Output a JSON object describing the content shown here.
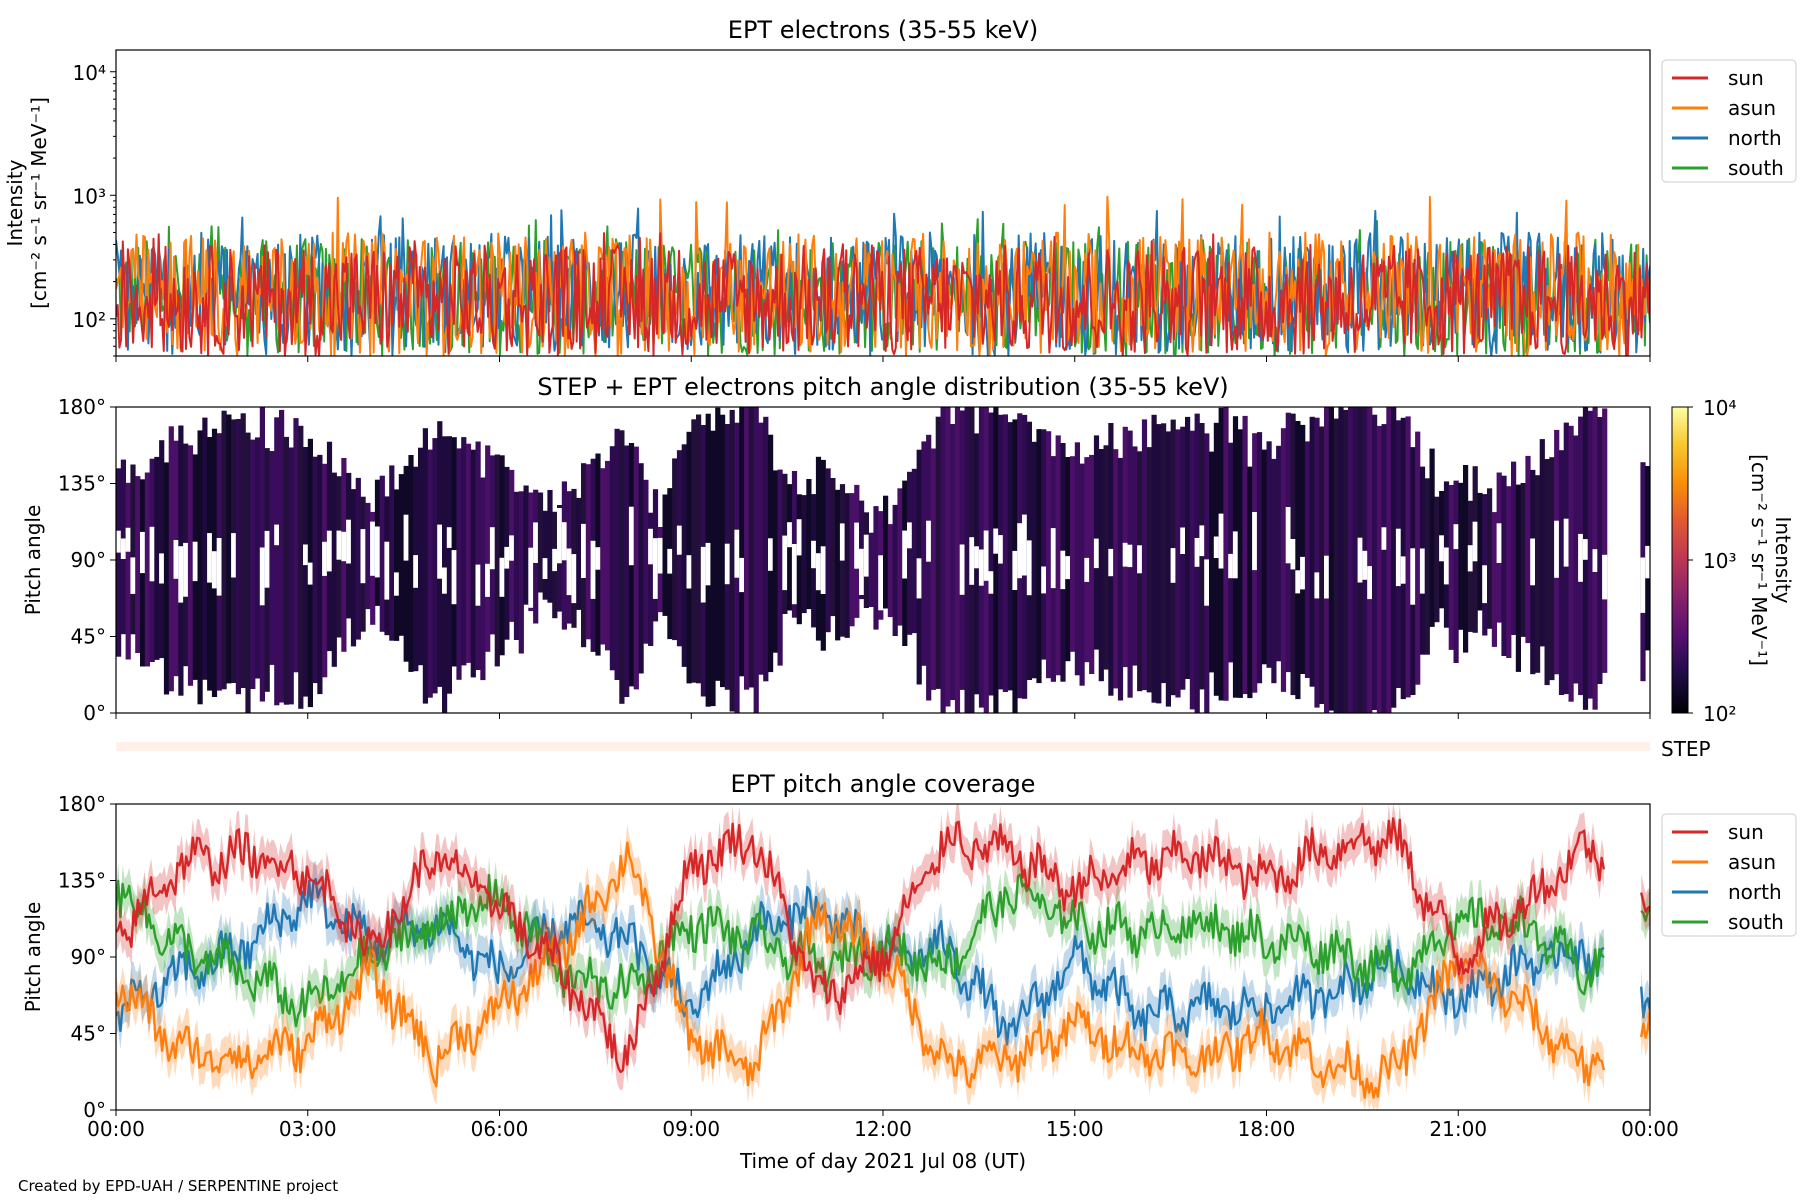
{
  "footer_credit": "Created by EPD-UAH / SERPENTINE project",
  "x_axis": {
    "label": "Time of day 2021 Jul 08 (UT)",
    "ticks": [
      "00:00",
      "03:00",
      "06:00",
      "09:00",
      "12:00",
      "15:00",
      "18:00",
      "21:00",
      "00:00"
    ],
    "range_hours": [
      0,
      24
    ]
  },
  "colorbar": {
    "label_line1": "Intensity",
    "label_line2": "[cm⁻² s⁻¹ sr⁻¹ MeV⁻¹]",
    "ticks": [
      "10⁴",
      "10³",
      "10²"
    ],
    "range": [
      100,
      10000
    ],
    "scale": "log",
    "colormap": "inferno"
  },
  "step_label": "STEP",
  "colors": {
    "sun": "#d62728",
    "asun": "#ff7f0e",
    "north": "#1f77b4",
    "south": "#2ca02c"
  },
  "chart_data": [
    {
      "type": "line",
      "title": "EPT electrons (35-55 keV)",
      "ylabel_line1": "Intensity",
      "ylabel_line2": "[cm⁻² s⁻¹ sr⁻¹ MeV⁻¹]",
      "yscale": "log",
      "ylim": [
        50,
        15000
      ],
      "yticks": [
        "10⁴",
        "10³",
        "10²"
      ],
      "legend": [
        "sun",
        "asun",
        "north",
        "south"
      ],
      "legend_position": "outside upper right",
      "series": [
        {
          "name": "sun",
          "typical_range": [
            50,
            400
          ],
          "peak": 500
        },
        {
          "name": "asun",
          "typical_range": [
            50,
            500
          ],
          "peak": 980
        },
        {
          "name": "north",
          "typical_range": [
            50,
            500
          ],
          "peak": 800
        },
        {
          "name": "south",
          "typical_range": [
            50,
            450
          ],
          "peak": 650
        }
      ]
    },
    {
      "type": "heatmap",
      "title": "STEP + EPT electrons pitch angle distribution (35-55 keV)",
      "ylabel": "Pitch angle",
      "ylim": [
        0,
        180
      ],
      "yticks": [
        "180°",
        "135°",
        "90°",
        "45°",
        "0°"
      ],
      "value_range": [
        100,
        10000
      ],
      "typical_value": 250,
      "data_gap_hours": [
        23.3,
        23.85
      ]
    },
    {
      "type": "line",
      "title": "EPT pitch angle coverage",
      "ylabel": "Pitch angle",
      "ylim": [
        0,
        180
      ],
      "yticks": [
        "180°",
        "135°",
        "90°",
        "45°",
        "0°"
      ],
      "legend": [
        "sun",
        "asun",
        "north",
        "south"
      ],
      "legend_position": "outside upper right",
      "shaded_band": true,
      "x_hours": [
        0,
        1,
        2,
        3,
        4,
        5,
        6,
        7,
        8,
        9,
        10,
        11,
        12,
        13,
        14,
        15,
        16,
        17,
        18,
        19,
        20,
        21,
        22,
        23,
        24
      ],
      "series": [
        {
          "name": "sun",
          "values": [
            100,
            145,
            150,
            140,
            95,
            150,
            120,
            80,
            30,
            145,
            160,
            65,
            90,
            160,
            150,
            130,
            145,
            150,
            135,
            155,
            160,
            90,
            120,
            155,
            130
          ]
        },
        {
          "name": "asun",
          "values": [
            75,
            35,
            30,
            40,
            80,
            30,
            60,
            95,
            150,
            40,
            25,
            115,
            90,
            25,
            30,
            50,
            35,
            30,
            45,
            25,
            20,
            90,
            60,
            25,
            50
          ]
        },
        {
          "name": "north",
          "values": [
            55,
            80,
            95,
            125,
            100,
            110,
            80,
            110,
            100,
            60,
            105,
            120,
            90,
            95,
            45,
            90,
            55,
            60,
            60,
            70,
            85,
            65,
            85,
            95,
            60
          ]
        },
        {
          "name": "south",
          "values": [
            130,
            95,
            80,
            60,
            90,
            110,
            125,
            80,
            70,
            110,
            100,
            85,
            95,
            85,
            130,
            110,
            105,
            110,
            100,
            95,
            80,
            110,
            110,
            80,
            120
          ]
        }
      ]
    }
  ]
}
